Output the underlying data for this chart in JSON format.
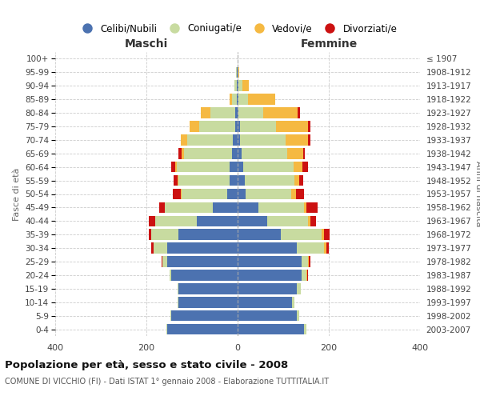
{
  "age_groups": [
    "0-4",
    "5-9",
    "10-14",
    "15-19",
    "20-24",
    "25-29",
    "30-34",
    "35-39",
    "40-44",
    "45-49",
    "50-54",
    "55-59",
    "60-64",
    "65-69",
    "70-74",
    "75-79",
    "80-84",
    "85-89",
    "90-94",
    "95-99",
    "100+"
  ],
  "birth_years": [
    "2003-2007",
    "1998-2002",
    "1993-1997",
    "1988-1992",
    "1983-1987",
    "1978-1982",
    "1973-1977",
    "1968-1972",
    "1963-1967",
    "1958-1962",
    "1953-1957",
    "1948-1952",
    "1943-1947",
    "1938-1942",
    "1933-1937",
    "1928-1932",
    "1923-1927",
    "1918-1922",
    "1913-1917",
    "1908-1912",
    "≤ 1907"
  ],
  "maschi": {
    "celibi": [
      155,
      145,
      130,
      130,
      145,
      155,
      155,
      130,
      90,
      55,
      22,
      18,
      18,
      12,
      10,
      5,
      5,
      2,
      2,
      1,
      0
    ],
    "coniugati": [
      2,
      2,
      2,
      2,
      5,
      10,
      30,
      60,
      90,
      105,
      100,
      112,
      115,
      105,
      100,
      80,
      55,
      10,
      5,
      2,
      0
    ],
    "vedovi": [
      0,
      0,
      0,
      0,
      0,
      0,
      0,
      0,
      0,
      0,
      2,
      2,
      3,
      5,
      15,
      20,
      20,
      5,
      0,
      0,
      0
    ],
    "divorziati": [
      0,
      0,
      0,
      0,
      0,
      2,
      5,
      5,
      15,
      12,
      18,
      8,
      10,
      8,
      0,
      0,
      0,
      0,
      0,
      0,
      0
    ]
  },
  "femmine": {
    "nubili": [
      145,
      130,
      120,
      130,
      140,
      140,
      130,
      95,
      65,
      45,
      18,
      15,
      12,
      8,
      5,
      5,
      2,
      2,
      2,
      0,
      0
    ],
    "coniugate": [
      5,
      5,
      5,
      8,
      10,
      15,
      60,
      90,
      90,
      100,
      100,
      110,
      110,
      100,
      100,
      80,
      55,
      20,
      8,
      2,
      0
    ],
    "vedove": [
      0,
      0,
      0,
      0,
      2,
      2,
      5,
      5,
      5,
      5,
      10,
      10,
      20,
      35,
      50,
      70,
      75,
      60,
      15,
      2,
      0
    ],
    "divorziate": [
      0,
      0,
      0,
      0,
      2,
      2,
      5,
      12,
      12,
      25,
      18,
      8,
      12,
      5,
      5,
      5,
      5,
      0,
      0,
      0,
      0
    ]
  },
  "colors": {
    "celibi": "#4c72b0",
    "coniugati": "#c8dba0",
    "vedovi": "#f5b942",
    "divorziati": "#cc1111"
  },
  "xlim": 400,
  "title": "Popolazione per età, sesso e stato civile - 2008",
  "subtitle": "COMUNE DI VICCHIO (FI) - Dati ISTAT 1° gennaio 2008 - Elaborazione TUTTITALIA.IT",
  "legend_labels": [
    "Celibi/Nubili",
    "Coniugati/e",
    "Vedovi/e",
    "Divorziati/e"
  ],
  "xlabel_left": "Maschi",
  "xlabel_right": "Femmine",
  "ylabel_left": "Fasce di età",
  "ylabel_right": "Anni di nascita"
}
